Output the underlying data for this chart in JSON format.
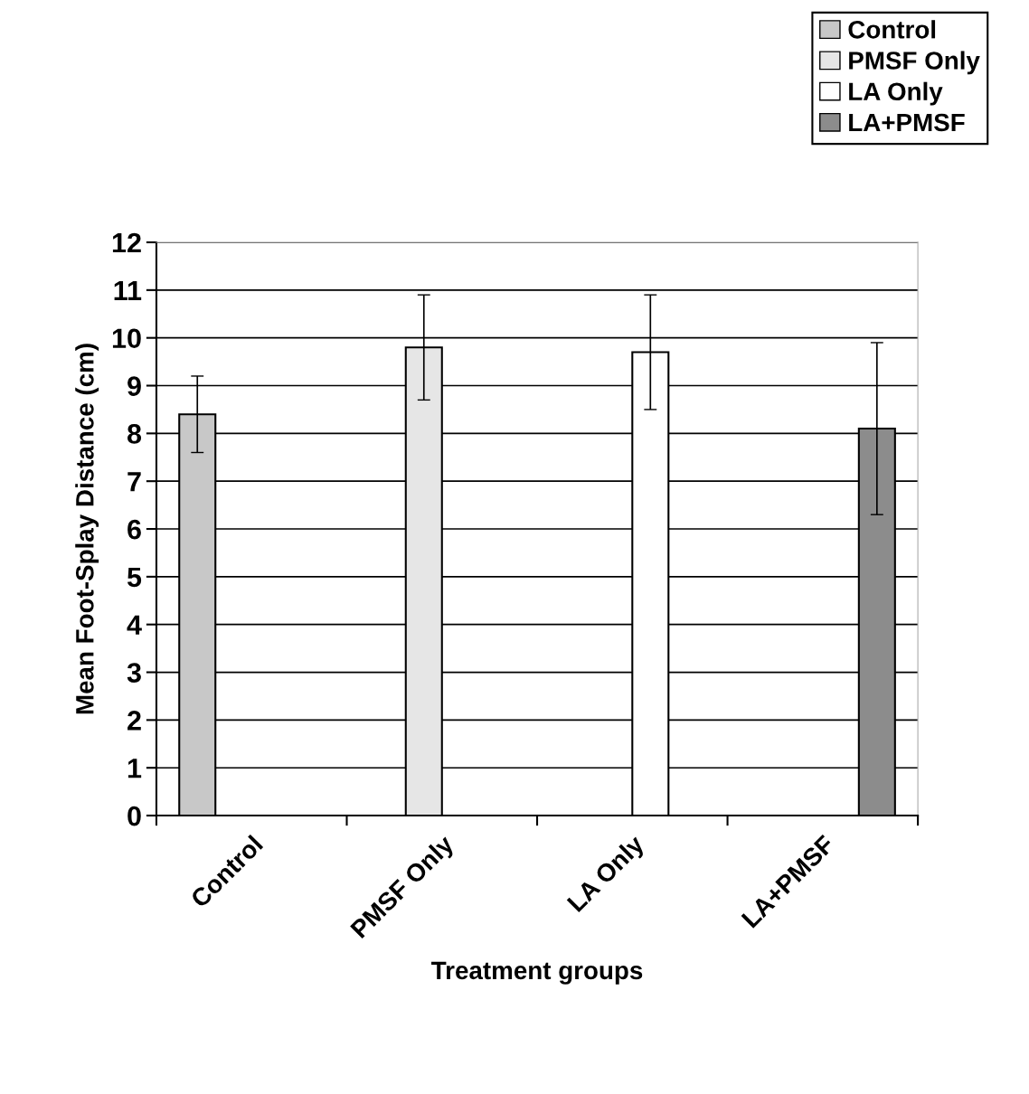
{
  "chart_data": {
    "type": "bar",
    "xlabel": "Treatment groups",
    "ylabel": "Mean Foot-Splay Distance (cm)",
    "categories": [
      "Control",
      "PMSF Only",
      "LA Only",
      "LA+PMSF"
    ],
    "series": [
      {
        "name": "Control",
        "color": "#c8c8c8",
        "values": [
          8.4,
          null,
          null,
          null
        ],
        "errors": [
          0.8,
          null,
          null,
          null
        ]
      },
      {
        "name": "PMSF Only",
        "color": "#e6e6e6",
        "values": [
          null,
          9.8,
          null,
          null
        ],
        "errors": [
          null,
          1.1,
          null,
          null
        ]
      },
      {
        "name": "LA Only",
        "color": "#ffffff",
        "values": [
          null,
          null,
          9.7,
          null
        ],
        "errors": [
          null,
          null,
          1.2,
          null
        ]
      },
      {
        "name": "LA+PMSF",
        "color": "#8c8c8c",
        "values": [
          null,
          null,
          null,
          8.1
        ],
        "errors": [
          null,
          null,
          null,
          1.8
        ]
      }
    ],
    "ylim": [
      0,
      12
    ],
    "yticks": [
      0,
      1,
      2,
      3,
      4,
      5,
      6,
      7,
      8,
      9,
      10,
      11,
      12
    ],
    "grid": "y",
    "legend": "top right"
  }
}
